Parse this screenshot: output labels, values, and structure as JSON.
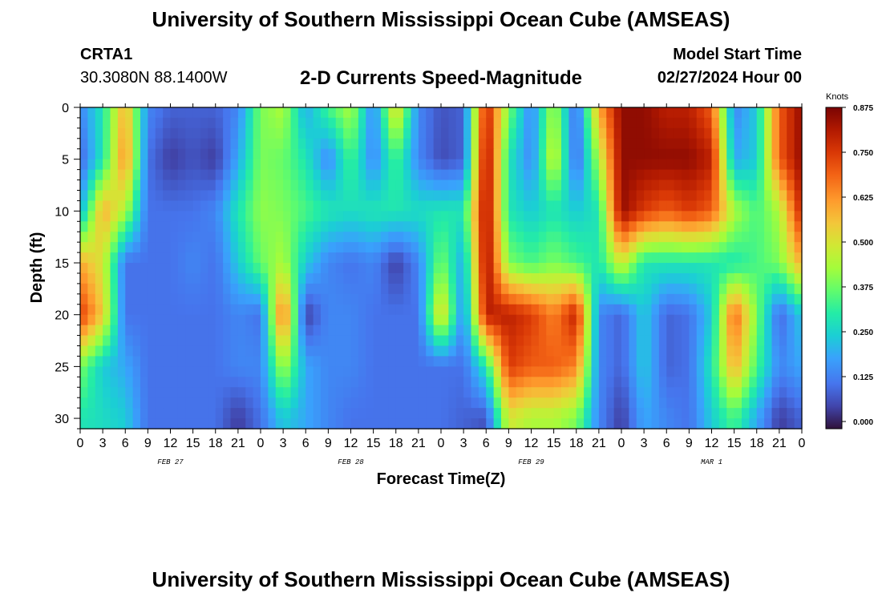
{
  "header": {
    "main_title": "University of Southern Mississippi Ocean Cube (AMSEAS)",
    "station_name": "CRTA1",
    "station_coords": "30.3080N  88.1400W",
    "chart_title": "2-D Currents Speed-Magnitude",
    "start_label": "Model Start Time",
    "start_value": "02/27/2024 Hour 00"
  },
  "footer": {
    "bottom_title": "University of Southern Mississippi Ocean Cube (AMSEAS)"
  },
  "chart_data": {
    "type": "heatmap",
    "title": "2-D Currents Speed-Magnitude",
    "xlabel": "Forecast Time(Z)",
    "ylabel": "Depth (ft)",
    "x_ticks": [
      "0",
      "3",
      "6",
      "9",
      "12",
      "15",
      "18",
      "21",
      "0",
      "3",
      "6",
      "9",
      "12",
      "15",
      "18",
      "21",
      "0",
      "3",
      "6",
      "9",
      "12",
      "15",
      "18",
      "21",
      "0",
      "3",
      "6",
      "9",
      "12",
      "15",
      "18",
      "21",
      "0"
    ],
    "x_hours": [
      0,
      3,
      6,
      9,
      12,
      15,
      18,
      21,
      24,
      27,
      30,
      33,
      36,
      39,
      42,
      45,
      48,
      51,
      54,
      57,
      60,
      63,
      66,
      69,
      72,
      75,
      78,
      81,
      84,
      87,
      90,
      93,
      96
    ],
    "date_labels": [
      {
        "label": "FEB 27",
        "hour": 12
      },
      {
        "label": "FEB 28",
        "hour": 36
      },
      {
        "label": "FEB 29",
        "hour": 60
      },
      {
        "label": "MAR 1",
        "hour": 84
      }
    ],
    "y_ticks": [
      0,
      5,
      10,
      15,
      20,
      25,
      30
    ],
    "ylim": [
      0,
      31
    ],
    "xlim": [
      0,
      96
    ],
    "y_inverted": true,
    "colorbar": {
      "label": "Knots",
      "ticks": [
        "0.875",
        "0.750",
        "0.625",
        "0.500",
        "0.375",
        "0.250",
        "0.125",
        "0.000"
      ],
      "range": [
        0,
        0.875
      ]
    },
    "depths": [
      0,
      5,
      10,
      15,
      20,
      25,
      30
    ],
    "hours": [
      0,
      3,
      6,
      9,
      12,
      15,
      18,
      21,
      24,
      27,
      30,
      33,
      36,
      39,
      42,
      45,
      48,
      51,
      54,
      57,
      60,
      63,
      66,
      69,
      72,
      75,
      78,
      81,
      84,
      87,
      90,
      93,
      96
    ],
    "values": [
      [
        0.15,
        0.3,
        0.6,
        0.15,
        0.1,
        0.1,
        0.1,
        0.15,
        0.4,
        0.45,
        0.2,
        0.35,
        0.45,
        0.15,
        0.55,
        0.15,
        0.08,
        0.1,
        0.8,
        0.4,
        0.15,
        0.45,
        0.1,
        0.6,
        0.85,
        0.85,
        0.8,
        0.8,
        0.7,
        0.15,
        0.25,
        0.7,
        0.85
      ],
      [
        0.1,
        0.3,
        0.65,
        0.12,
        0.05,
        0.08,
        0.05,
        0.2,
        0.4,
        0.38,
        0.3,
        0.15,
        0.35,
        0.15,
        0.35,
        0.15,
        0.07,
        0.1,
        0.85,
        0.3,
        0.15,
        0.5,
        0.1,
        0.45,
        0.85,
        0.85,
        0.85,
        0.85,
        0.8,
        0.2,
        0.25,
        0.7,
        0.85
      ],
      [
        0.2,
        0.6,
        0.45,
        0.12,
        0.12,
        0.12,
        0.15,
        0.3,
        0.42,
        0.4,
        0.35,
        0.3,
        0.28,
        0.3,
        0.3,
        0.28,
        0.3,
        0.3,
        0.85,
        0.3,
        0.25,
        0.3,
        0.25,
        0.3,
        0.85,
        0.75,
        0.7,
        0.75,
        0.7,
        0.45,
        0.35,
        0.45,
        0.8
      ],
      [
        0.6,
        0.5,
        0.12,
        0.12,
        0.12,
        0.15,
        0.12,
        0.25,
        0.38,
        0.45,
        0.25,
        0.15,
        0.12,
        0.15,
        0.05,
        0.15,
        0.4,
        0.2,
        0.85,
        0.4,
        0.35,
        0.4,
        0.35,
        0.3,
        0.5,
        0.3,
        0.3,
        0.3,
        0.3,
        0.3,
        0.35,
        0.4,
        0.6
      ],
      [
        0.75,
        0.55,
        0.12,
        0.12,
        0.12,
        0.12,
        0.12,
        0.15,
        0.12,
        0.7,
        0.05,
        0.15,
        0.15,
        0.12,
        0.12,
        0.12,
        0.55,
        0.15,
        0.8,
        0.8,
        0.75,
        0.65,
        0.8,
        0.15,
        0.1,
        0.25,
        0.1,
        0.12,
        0.25,
        0.7,
        0.4,
        0.1,
        0.25
      ],
      [
        0.4,
        0.25,
        0.2,
        0.12,
        0.12,
        0.12,
        0.12,
        0.15,
        0.15,
        0.45,
        0.2,
        0.15,
        0.15,
        0.12,
        0.12,
        0.12,
        0.12,
        0.12,
        0.3,
        0.75,
        0.7,
        0.7,
        0.65,
        0.15,
        0.1,
        0.25,
        0.1,
        0.12,
        0.3,
        0.6,
        0.35,
        0.15,
        0.2
      ],
      [
        0.3,
        0.28,
        0.25,
        0.12,
        0.12,
        0.12,
        0.12,
        0.05,
        0.12,
        0.25,
        0.2,
        0.15,
        0.12,
        0.12,
        0.12,
        0.12,
        0.12,
        0.1,
        0.08,
        0.5,
        0.45,
        0.45,
        0.4,
        0.15,
        0.05,
        0.2,
        0.15,
        0.12,
        0.25,
        0.35,
        0.2,
        0.05,
        0.1
      ]
    ]
  }
}
